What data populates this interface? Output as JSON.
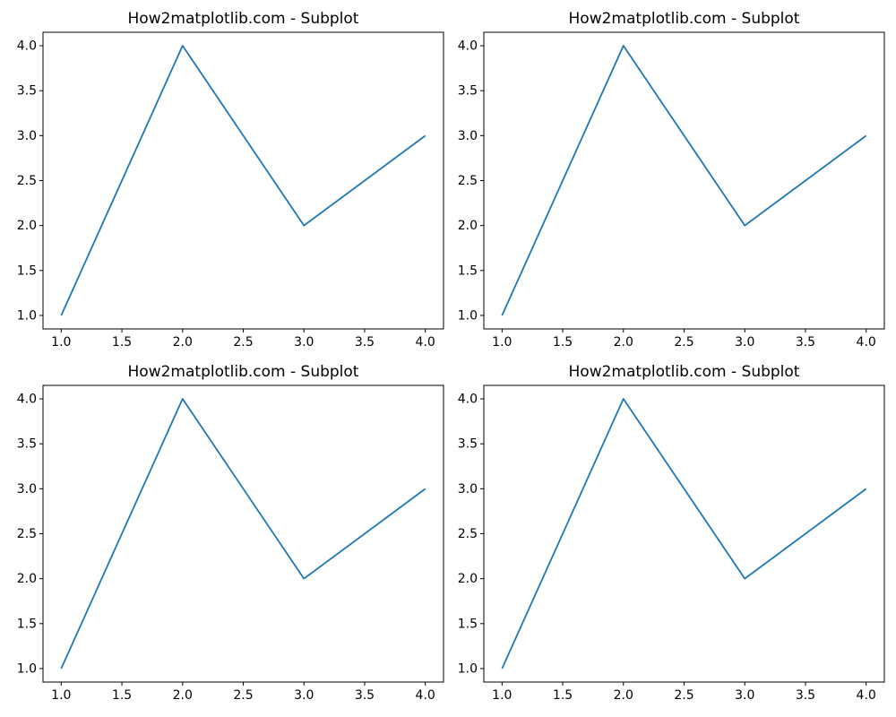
{
  "figure": {
    "background": "#ffffff",
    "spine_color": "#000000",
    "tick_color": "#000000",
    "text_color": "#000000",
    "accent_line_color": "#1f77b4"
  },
  "chart_data": [
    {
      "type": "line",
      "title": "How2matplotlib.com - Subplot",
      "x": [
        1,
        2,
        3,
        4
      ],
      "y": [
        1,
        4,
        2,
        3
      ],
      "xlim": [
        0.85,
        4.15
      ],
      "ylim": [
        0.85,
        4.15
      ],
      "xticks": [
        1.0,
        1.5,
        2.0,
        2.5,
        3.0,
        3.5,
        4.0
      ],
      "yticks": [
        1.0,
        1.5,
        2.0,
        2.5,
        3.0,
        3.5,
        4.0
      ],
      "xtick_labels": [
        "1.0",
        "1.5",
        "2.0",
        "2.5",
        "3.0",
        "3.5",
        "4.0"
      ],
      "ytick_labels": [
        "1.0",
        "1.5",
        "2.0",
        "2.5",
        "3.0",
        "3.5",
        "4.0"
      ],
      "xlabel": "",
      "ylabel": "",
      "grid": false,
      "legend": null,
      "line_color": "#1f77b4"
    },
    {
      "type": "line",
      "title": "How2matplotlib.com - Subplot",
      "x": [
        1,
        2,
        3,
        4
      ],
      "y": [
        1,
        4,
        2,
        3
      ],
      "xlim": [
        0.85,
        4.15
      ],
      "ylim": [
        0.85,
        4.15
      ],
      "xticks": [
        1.0,
        1.5,
        2.0,
        2.5,
        3.0,
        3.5,
        4.0
      ],
      "yticks": [
        1.0,
        1.5,
        2.0,
        2.5,
        3.0,
        3.5,
        4.0
      ],
      "xtick_labels": [
        "1.0",
        "1.5",
        "2.0",
        "2.5",
        "3.0",
        "3.5",
        "4.0"
      ],
      "ytick_labels": [
        "1.0",
        "1.5",
        "2.0",
        "2.5",
        "3.0",
        "3.5",
        "4.0"
      ],
      "xlabel": "",
      "ylabel": "",
      "grid": false,
      "legend": null,
      "line_color": "#1f77b4"
    },
    {
      "type": "line",
      "title": "How2matplotlib.com - Subplot",
      "x": [
        1,
        2,
        3,
        4
      ],
      "y": [
        1,
        4,
        2,
        3
      ],
      "xlim": [
        0.85,
        4.15
      ],
      "ylim": [
        0.85,
        4.15
      ],
      "xticks": [
        1.0,
        1.5,
        2.0,
        2.5,
        3.0,
        3.5,
        4.0
      ],
      "yticks": [
        1.0,
        1.5,
        2.0,
        2.5,
        3.0,
        3.5,
        4.0
      ],
      "xtick_labels": [
        "1.0",
        "1.5",
        "2.0",
        "2.5",
        "3.0",
        "3.5",
        "4.0"
      ],
      "ytick_labels": [
        "1.0",
        "1.5",
        "2.0",
        "2.5",
        "3.0",
        "3.5",
        "4.0"
      ],
      "xlabel": "",
      "ylabel": "",
      "grid": false,
      "legend": null,
      "line_color": "#1f77b4"
    },
    {
      "type": "line",
      "title": "How2matplotlib.com - Subplot",
      "x": [
        1,
        2,
        3,
        4
      ],
      "y": [
        1,
        4,
        2,
        3
      ],
      "xlim": [
        0.85,
        4.15
      ],
      "ylim": [
        0.85,
        4.15
      ],
      "xticks": [
        1.0,
        1.5,
        2.0,
        2.5,
        3.0,
        3.5,
        4.0
      ],
      "yticks": [
        1.0,
        1.5,
        2.0,
        2.5,
        3.0,
        3.5,
        4.0
      ],
      "xtick_labels": [
        "1.0",
        "1.5",
        "2.0",
        "2.5",
        "3.0",
        "3.5",
        "4.0"
      ],
      "ytick_labels": [
        "1.0",
        "1.5",
        "2.0",
        "2.5",
        "3.0",
        "3.5",
        "4.0"
      ],
      "xlabel": "",
      "ylabel": "",
      "grid": false,
      "legend": null,
      "line_color": "#1f77b4"
    }
  ]
}
